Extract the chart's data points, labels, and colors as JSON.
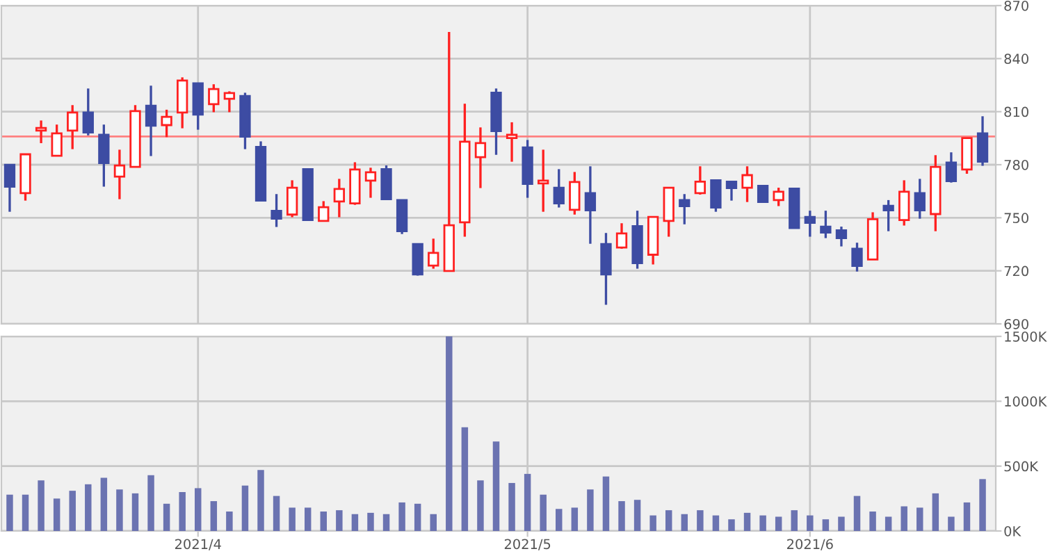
{
  "chart_data": [
    {
      "type": "candlestick",
      "categories": [
        null,
        null,
        null,
        null,
        null,
        null,
        null,
        null,
        null,
        null,
        null,
        null,
        "2021/4",
        null,
        null,
        null,
        null,
        null,
        null,
        null,
        null,
        null,
        null,
        null,
        null,
        null,
        null,
        null,
        null,
        null,
        null,
        null,
        null,
        "2021/5",
        null,
        null,
        null,
        null,
        null,
        null,
        null,
        null,
        null,
        null,
        null,
        null,
        null,
        null,
        null,
        null,
        null,
        "2021/6",
        null,
        null,
        null,
        null,
        null,
        null,
        null,
        null,
        null,
        null,
        null
      ],
      "ohlc": [
        [
          779.9,
          779.9,
          753.4,
          767.6
        ],
        [
          763.9,
          785.9,
          759.7,
          785.9
        ],
        [
          799.3,
          805.0,
          792.2,
          800.8
        ],
        [
          785.1,
          802.7,
          785.1,
          797.7
        ],
        [
          799.3,
          813.7,
          788.8,
          809.5
        ],
        [
          809.5,
          823.1,
          796.6,
          798.2
        ],
        [
          796.9,
          802.7,
          767.6,
          780.9
        ],
        [
          773.3,
          788.5,
          760.5,
          779.6
        ],
        [
          778.8,
          813.7,
          778.8,
          810.3
        ],
        [
          813.4,
          824.7,
          784.9,
          802.1
        ],
        [
          802.4,
          811.1,
          795.6,
          807.1
        ],
        [
          809.5,
          829.4,
          800.6,
          827.6
        ],
        [
          826.0,
          826.0,
          799.8,
          808.4
        ],
        [
          814.2,
          825.5,
          809.7,
          822.8
        ],
        [
          817.3,
          821.5,
          809.7,
          820.5
        ],
        [
          818.9,
          820.7,
          788.8,
          795.9
        ],
        [
          790.1,
          793.2,
          759.7,
          759.7
        ],
        [
          753.9,
          763.4,
          744.8,
          749.5
        ],
        [
          751.8,
          771.2,
          750.3,
          767.0
        ],
        [
          777.5,
          777.5,
          748.7,
          748.7
        ],
        [
          748.2,
          759.4,
          748.2,
          756.0
        ],
        [
          759.2,
          772.0,
          750.3,
          766.3
        ],
        [
          758.1,
          781.4,
          757.3,
          777.3
        ],
        [
          771.0,
          778.3,
          761.3,
          775.7
        ],
        [
          777.5,
          779.6,
          760.5,
          760.5
        ],
        [
          760.0,
          760.0,
          740.8,
          742.4
        ],
        [
          735.1,
          735.1,
          717.3,
          718.0
        ],
        [
          723.0,
          738.2,
          721.2,
          730.1
        ],
        [
          719.9,
          855.1,
          719.9,
          745.8
        ],
        [
          747.4,
          814.5,
          739.3,
          793.0
        ],
        [
          784.3,
          801.1,
          766.8,
          792.2
        ],
        [
          820.7,
          823.1,
          785.6,
          799.0
        ],
        [
          795.1,
          804.0,
          781.7,
          796.9
        ],
        [
          789.8,
          794.0,
          761.3,
          769.1
        ],
        [
          769.4,
          788.5,
          753.4,
          771.0
        ],
        [
          767.0,
          777.5,
          755.8,
          758.1
        ],
        [
          754.5,
          775.9,
          751.8,
          770.2
        ],
        [
          763.9,
          779.1,
          735.3,
          754.2
        ],
        [
          735.1,
          741.4,
          700.8,
          718.0
        ],
        [
          733.2,
          746.9,
          732.5,
          741.1
        ],
        [
          745.3,
          754.0,
          721.2,
          724.3
        ],
        [
          729.1,
          750.5,
          723.6,
          750.5
        ],
        [
          748.2,
          767.0,
          739.3,
          767.0
        ],
        [
          760.0,
          763.4,
          746.3,
          756.6
        ],
        [
          763.9,
          779.1,
          763.1,
          770.4
        ],
        [
          771.2,
          771.2,
          753.4,
          755.8
        ],
        [
          770.4,
          770.4,
          759.7,
          766.8
        ],
        [
          767.0,
          779.1,
          758.9,
          774.1
        ],
        [
          768.1,
          768.1,
          758.9,
          758.9
        ],
        [
          760.0,
          767.0,
          756.6,
          764.7
        ],
        [
          766.5,
          766.5,
          744.2,
          744.2
        ],
        [
          750.5,
          754.0,
          739.3,
          747.1
        ],
        [
          745.0,
          754.0,
          738.5,
          741.6
        ],
        [
          742.9,
          745.0,
          733.8,
          738.5
        ],
        [
          732.5,
          735.9,
          719.6,
          722.8
        ],
        [
          726.4,
          753.1,
          726.4,
          749.2
        ],
        [
          756.8,
          760.0,
          742.4,
          754.2
        ],
        [
          748.7,
          771.2,
          745.6,
          764.7
        ],
        [
          763.9,
          772.0,
          749.5,
          754.2
        ],
        [
          752.1,
          785.4,
          742.4,
          778.8
        ],
        [
          781.2,
          787.0,
          769.9,
          770.7
        ],
        [
          777.3,
          795.1,
          774.9,
          795.1
        ],
        [
          797.7,
          807.4,
          779.4,
          781.7
        ]
      ],
      "colors": [
        "#3d4ca3",
        "#ff2020",
        "#ff2020",
        "#ff2020",
        "#ff2020",
        "#3d4ca3",
        "#3d4ca3",
        "#ff2020",
        "#ff2020",
        "#3d4ca3",
        "#ff2020",
        "#ff2020",
        "#3d4ca3",
        "#ff2020",
        "#ff2020",
        "#3d4ca3",
        "#3d4ca3",
        "#3d4ca3",
        "#ff2020",
        "#3d4ca3",
        "#ff2020",
        "#ff2020",
        "#ff2020",
        "#ff2020",
        "#3d4ca3",
        "#3d4ca3",
        "#3d4ca3",
        "#ff2020",
        "#ff2020",
        "#ff2020",
        "#ff2020",
        "#3d4ca3",
        "#ff2020",
        "#3d4ca3",
        "#ff2020",
        "#3d4ca3",
        "#ff2020",
        "#3d4ca3",
        "#3d4ca3",
        "#ff2020",
        "#3d4ca3",
        "#ff2020",
        "#ff2020",
        "#3d4ca3",
        "#ff2020",
        "#3d4ca3",
        "#3d4ca3",
        "#ff2020",
        "#3d4ca3",
        "#ff2020",
        "#3d4ca3",
        "#3d4ca3",
        "#3d4ca3",
        "#3d4ca3",
        "#3d4ca3",
        "#ff2020",
        "#3d4ca3",
        "#ff2020",
        "#3d4ca3",
        "#ff2020",
        "#3d4ca3",
        "#ff2020",
        "#3d4ca3"
      ],
      "ylim": [
        690,
        870
      ],
      "yticks": [
        690,
        720,
        750,
        780,
        810,
        840,
        870
      ],
      "ref_lines": [
        {
          "axis": "y",
          "value": 796,
          "color": "#ff8080"
        }
      ],
      "grid": true,
      "tick_labels": "y"
    },
    {
      "type": "bar",
      "categories": [
        null,
        null,
        null,
        null,
        null,
        null,
        null,
        null,
        null,
        null,
        null,
        null,
        "2021/4",
        null,
        null,
        null,
        null,
        null,
        null,
        null,
        null,
        null,
        null,
        null,
        null,
        null,
        null,
        null,
        null,
        null,
        null,
        null,
        null,
        "2021/5",
        null,
        null,
        null,
        null,
        null,
        null,
        null,
        null,
        null,
        null,
        null,
        null,
        null,
        null,
        null,
        null,
        null,
        "2021/6",
        null,
        null,
        null,
        null,
        null,
        null,
        null,
        null,
        null,
        null,
        null
      ],
      "values": [
        280,
        280,
        390,
        250,
        310,
        360,
        410,
        320,
        290,
        430,
        210,
        300,
        330,
        230,
        150,
        350,
        470,
        270,
        180,
        180,
        150,
        160,
        130,
        140,
        130,
        220,
        210,
        130,
        1500,
        800,
        390,
        690,
        370,
        440,
        280,
        170,
        180,
        320,
        420,
        230,
        240,
        120,
        160,
        130,
        160,
        120,
        90,
        140,
        120,
        110,
        160,
        120,
        90,
        110,
        270,
        150,
        110,
        190,
        180,
        290,
        110,
        220,
        400
      ],
      "color": "#6b73b1",
      "ylim": [
        0,
        1500
      ],
      "yticks": [
        {
          "value": 0,
          "label": "0K"
        },
        {
          "value": 500,
          "label": "500K"
        },
        {
          "value": 1000,
          "label": "1000K"
        },
        {
          "value": 1500,
          "label": "1500K"
        }
      ],
      "grid": true
    }
  ]
}
